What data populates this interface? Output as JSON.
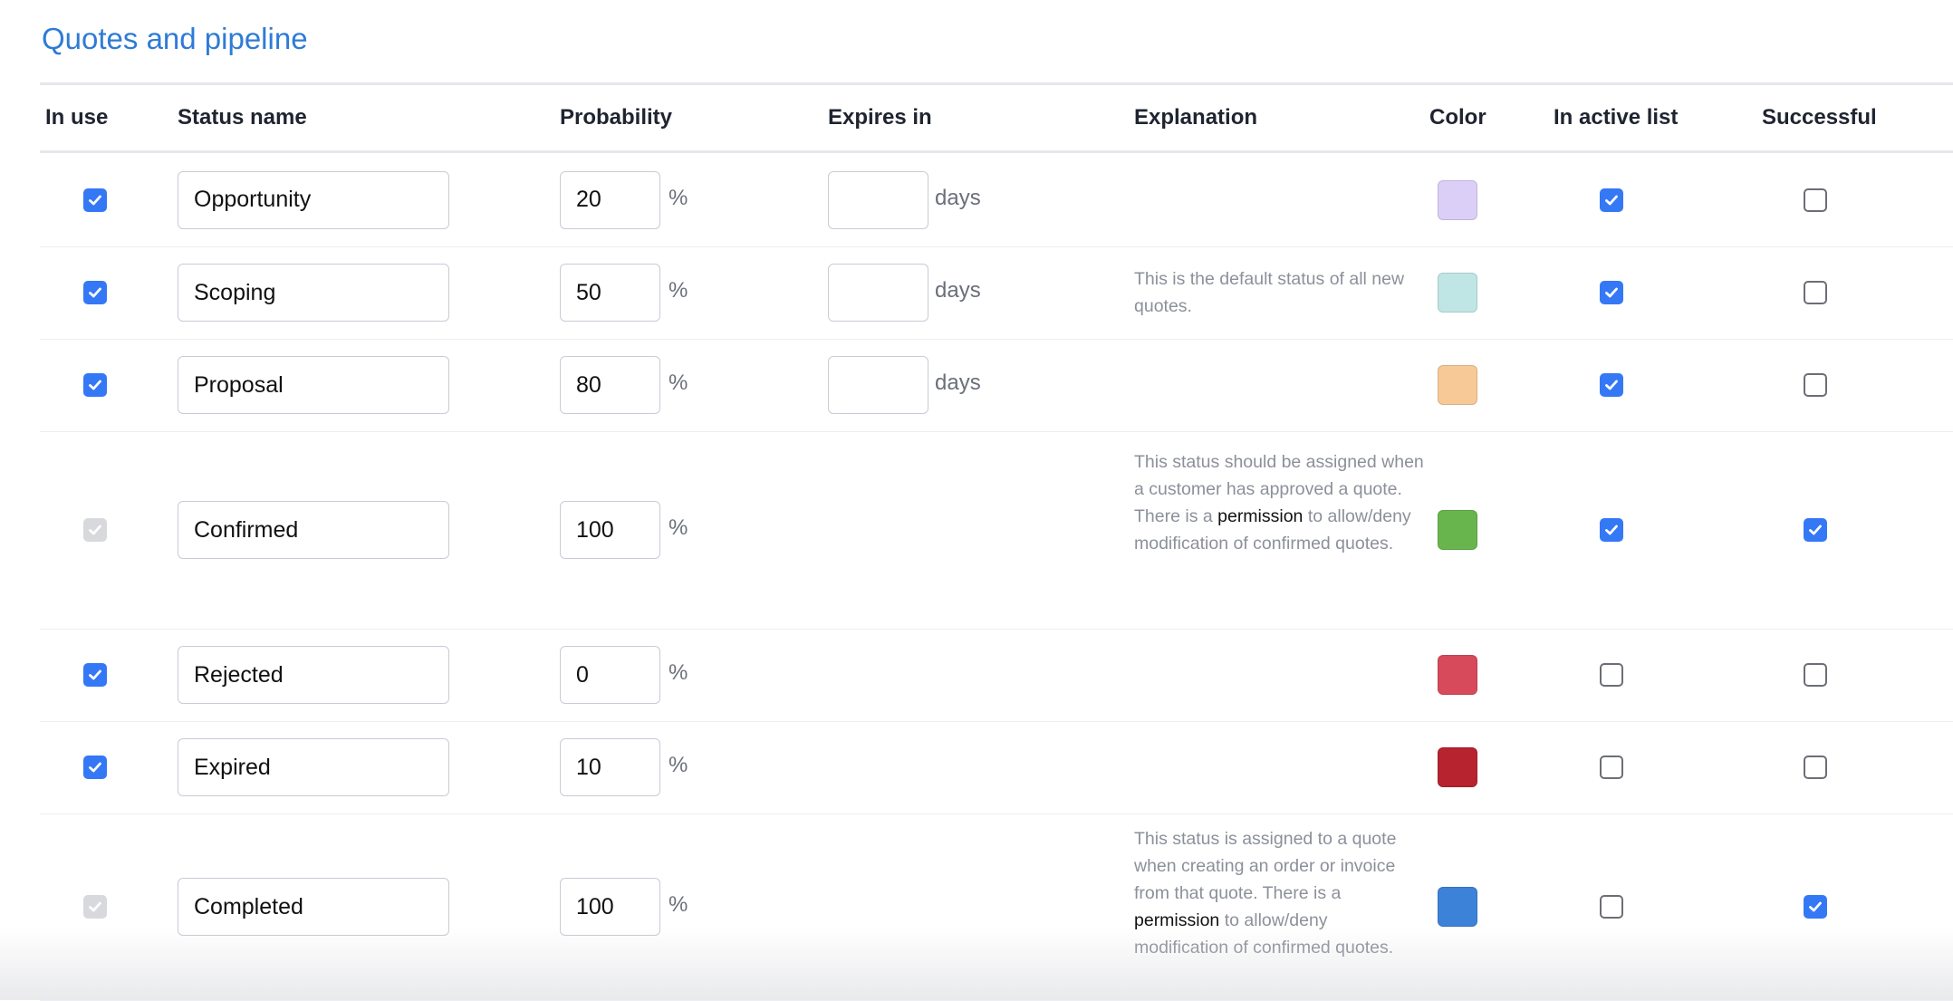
{
  "page": {
    "title": "Quotes and pipeline"
  },
  "columns": {
    "in_use": "In use",
    "status_name": "Status name",
    "probability": "Probability",
    "expires_in": "Expires in",
    "explanation": "Explanation",
    "color": "Color",
    "in_active_list": "In active list",
    "successful": "Successful"
  },
  "units": {
    "percent": "%",
    "days": "days"
  },
  "rows": [
    {
      "in_use": "checked",
      "name": "Opportunity",
      "probability": "20",
      "expires_in": "",
      "show_days": true,
      "explanation": [],
      "color": "#dccff7",
      "in_active_list": "checked",
      "successful": "unchecked"
    },
    {
      "in_use": "checked",
      "name": "Scoping",
      "probability": "50",
      "expires_in": "",
      "show_days": true,
      "explanation": [
        {
          "t": "This is the default status of all new quotes."
        }
      ],
      "color": "#bfe6e5",
      "in_active_list": "checked",
      "successful": "unchecked"
    },
    {
      "in_use": "checked",
      "name": "Proposal",
      "probability": "80",
      "expires_in": "",
      "show_days": true,
      "explanation": [],
      "color": "#f6c996",
      "in_active_list": "checked",
      "successful": "unchecked"
    },
    {
      "in_use": "disabled",
      "name": "Confirmed",
      "probability": "100",
      "expires_in": "",
      "show_days": false,
      "explanation": [
        {
          "t": "This status should be assigned when a customer has approved a quote. There is a "
        },
        {
          "t": "permission",
          "link": true
        },
        {
          "t": " to allow/deny modification of confirmed quotes."
        }
      ],
      "color": "#68b54d",
      "in_active_list": "checked",
      "successful": "checked"
    },
    {
      "in_use": "checked",
      "name": "Rejected",
      "probability": "0",
      "expires_in": "",
      "show_days": false,
      "explanation": [],
      "color": "#d64a5c",
      "in_active_list": "unchecked",
      "successful": "unchecked"
    },
    {
      "in_use": "checked",
      "name": "Expired",
      "probability": "10",
      "expires_in": "",
      "show_days": false,
      "explanation": [],
      "color": "#b7232e",
      "in_active_list": "unchecked",
      "successful": "unchecked"
    },
    {
      "in_use": "disabled",
      "name": "Completed",
      "probability": "100",
      "expires_in": "",
      "show_days": false,
      "explanation": [
        {
          "t": "This status is assigned to a quote when creating an order or invoice from that quote. There is a "
        },
        {
          "t": "permission",
          "link": true
        },
        {
          "t": " to allow/deny modification of confirmed quotes."
        }
      ],
      "color": "#3d82d9",
      "in_active_list": "unchecked",
      "successful": "checked"
    }
  ]
}
